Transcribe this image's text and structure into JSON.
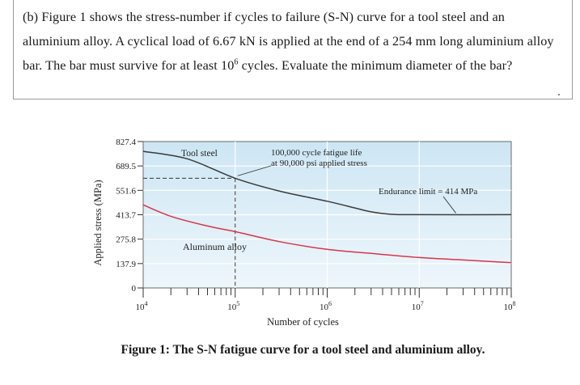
{
  "question": {
    "part": "(b)",
    "text_before_exp": "Figure 1 shows the stress-number if cycles to failure (S-N) curve for a tool steel and an aluminium alloy. A cyclical load of 6.67 kN is applied at the end of a 254 mm long aluminium alloy bar. The bar must survive for at least 10",
    "exp": "6",
    "text_after_exp": " cycles. Evaluate the minimum diameter of the bar?"
  },
  "chart_data": {
    "type": "line",
    "title": "",
    "xlabel": "Number of cycles",
    "ylabel": "Applied stress (MPa)",
    "x_scale": "log",
    "xlim": [
      10000,
      100000000
    ],
    "ylim": [
      0,
      827.4
    ],
    "x_ticks": [
      {
        "value": 10000,
        "base": "10",
        "exp": "4"
      },
      {
        "value": 100000,
        "base": "10",
        "exp": "5"
      },
      {
        "value": 1000000,
        "base": "10",
        "exp": "6"
      },
      {
        "value": 10000000,
        "base": "10",
        "exp": "7"
      },
      {
        "value": 100000000,
        "base": "10",
        "exp": "8"
      }
    ],
    "y_ticks": [
      {
        "value": 0,
        "label": "0"
      },
      {
        "value": 137.9,
        "label": "137.9"
      },
      {
        "value": 275.8,
        "label": "275.8"
      },
      {
        "value": 413.7,
        "label": "413.7"
      },
      {
        "value": 551.6,
        "label": "551.6"
      },
      {
        "value": 689.5,
        "label": "689.5"
      },
      {
        "value": 827.4,
        "label": "827.4"
      }
    ],
    "grid": true,
    "series": [
      {
        "name": "Tool steel",
        "color": "#3a3a3a",
        "x": [
          10000,
          30000,
          100000,
          300000,
          1000000,
          2000000,
          3000000,
          5000000,
          10000000,
          100000000
        ],
        "y": [
          772,
          730,
          620,
          548,
          490,
          452,
          430,
          416,
          414,
          414
        ]
      },
      {
        "name": "Aluminum alloy",
        "color": "#d6354a",
        "x": [
          10000,
          20000,
          50000,
          100000,
          300000,
          1000000,
          3000000,
          10000000,
          30000000,
          100000000
        ],
        "y": [
          470,
          405,
          350,
          318,
          262,
          218,
          195,
          172,
          158,
          143
        ]
      }
    ],
    "annotations": [
      {
        "id": "fatigue-life-line1",
        "text": "100,000 cycle fatigue life"
      },
      {
        "id": "fatigue-life-line2",
        "text": "at 90,000 psi applied stress"
      },
      {
        "id": "endurance-limit",
        "text": "Endurance limit = 414 MPa"
      }
    ],
    "reference_point": {
      "x": 100000,
      "y": 620
    }
  },
  "caption": "Figure 1: The S-N fatigue curve for a tool steel and aluminium alloy.",
  "colors": {
    "plot_top": "#cde6f4",
    "plot_bottom": "#e9f4fa",
    "grid": "#ffffff",
    "aluminum": "#d6354a",
    "steel": "#3a3a3a"
  }
}
